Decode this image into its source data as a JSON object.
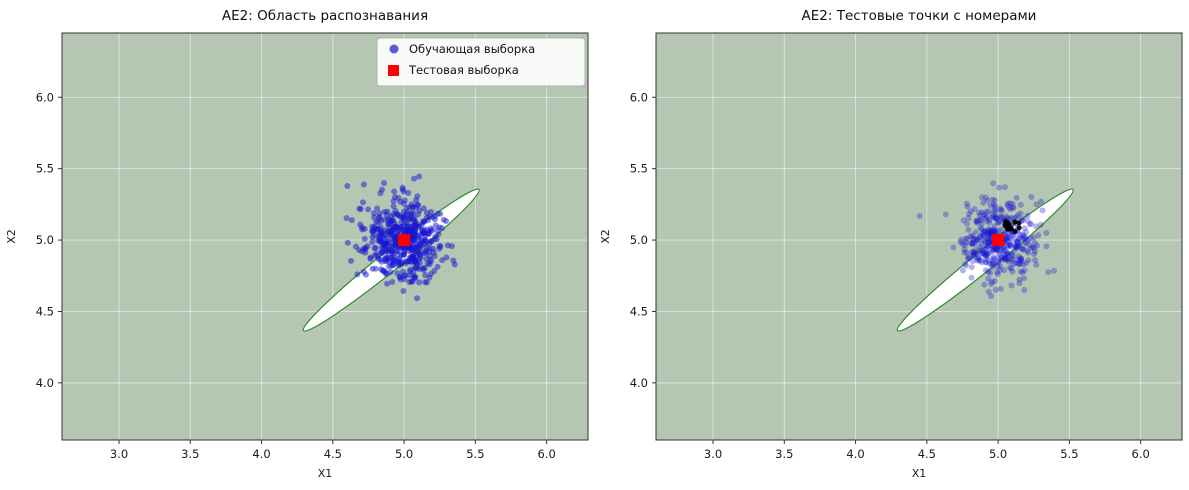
{
  "figure": {
    "background": "#ffffff"
  },
  "chart_data": [
    {
      "type": "scatter",
      "title": "AE2: Область распознавания",
      "xlabel": "X1",
      "ylabel": "X2",
      "xlim": [
        2.6,
        6.29
      ],
      "ylim": [
        3.6,
        6.45
      ],
      "xticks": [
        3.0,
        3.5,
        4.0,
        4.5,
        5.0,
        5.5,
        6.0
      ],
      "yticks": [
        4.0,
        4.5,
        5.0,
        5.5,
        6.0
      ],
      "grid": true,
      "plot_background": "#b5c7b3",
      "grid_color": "rgba(255,255,255,0.55)",
      "spine_color": "#333333",
      "recognition_region": {
        "shape": "rotated-ellipse",
        "center": [
          4.91,
          4.86
        ],
        "length": 1.58,
        "width": 0.14,
        "angle_deg": 38.8,
        "fill": "#ffffff",
        "stroke": "#2e8b2e"
      },
      "series": [
        {
          "name": "Обучающая выборка",
          "marker": "circle",
          "color": "#1515d0",
          "alpha": 0.5,
          "marker_px": 3,
          "cluster": {
            "center": [
              5.0,
              5.0
            ],
            "std": 0.14,
            "count": 500,
            "seed": 42
          }
        },
        {
          "name": "Тестовая выборка",
          "marker": "square",
          "color": "#ff0000",
          "alpha": 1,
          "marker_px": 12,
          "points": [
            [
              5.0,
              5.0
            ]
          ]
        }
      ],
      "legend": {
        "visible": true,
        "position": "upper right"
      }
    },
    {
      "type": "scatter",
      "title": "AE2: Тестовые точки с номерами",
      "xlabel": "X1",
      "ylabel": "X2",
      "xlim": [
        2.6,
        6.29
      ],
      "ylim": [
        3.6,
        6.45
      ],
      "xticks": [
        3.0,
        3.5,
        4.0,
        4.5,
        5.0,
        5.5,
        6.0
      ],
      "yticks": [
        4.0,
        4.5,
        5.0,
        5.5,
        6.0
      ],
      "grid": true,
      "plot_background": "#b5c7b3",
      "grid_color": "rgba(255,255,255,0.55)",
      "spine_color": "#333333",
      "recognition_region": {
        "shape": "rotated-ellipse",
        "center": [
          4.91,
          4.86
        ],
        "length": 1.58,
        "width": 0.14,
        "angle_deg": 38.8,
        "fill": "#ffffff",
        "stroke": "#2e8b2e"
      },
      "series": [
        {
          "name": "Обучающая выборка",
          "marker": "circle",
          "color": "#1515d0",
          "alpha": 0.32,
          "marker_px": 3,
          "cluster": {
            "center": [
              5.0,
              5.0
            ],
            "std": 0.14,
            "count": 420,
            "seed": 7
          }
        },
        {
          "name": "Тестовые точки",
          "marker": "circle",
          "color": "#000000",
          "alpha": 0.9,
          "marker_px": 2.5,
          "cluster": {
            "center": [
              5.1,
              5.09
            ],
            "std": 0.03,
            "count": 14,
            "seed": 3
          }
        },
        {
          "name": "Тестовая выборка",
          "marker": "square",
          "color": "#ff0000",
          "alpha": 1,
          "marker_px": 12,
          "points": [
            [
              5.0,
              5.0
            ]
          ]
        }
      ],
      "legend": {
        "visible": false,
        "position": "upper right"
      }
    }
  ]
}
